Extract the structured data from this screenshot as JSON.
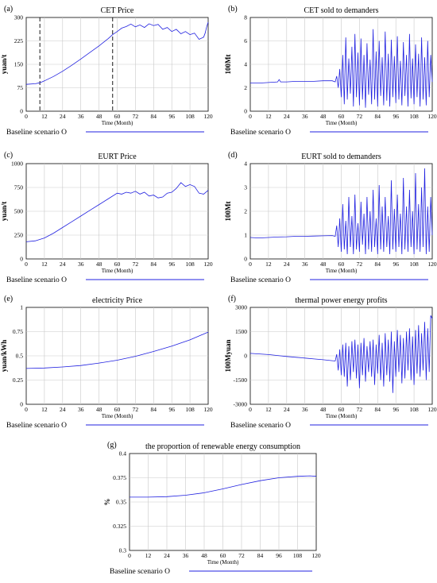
{
  "chart_data": [
    {
      "panel": "(a)",
      "type": "line",
      "title": "CET Price",
      "ylabel": "yuan/t",
      "xlabel": "Time (Month)",
      "xlim": [
        0,
        120
      ],
      "ylim": [
        0,
        300
      ],
      "xticks": [
        "0",
        "12",
        "24",
        "36",
        "48",
        "60",
        "72",
        "84",
        "96",
        "108",
        "120"
      ],
      "yticks": [
        "0",
        "75",
        "150",
        "225",
        "300"
      ],
      "grid": true,
      "markers_x": [
        9,
        57
      ],
      "legend": "Baseline scenario O",
      "series": [
        {
          "x": [
            0,
            6,
            9,
            12,
            18,
            24,
            30,
            36,
            42,
            48,
            54,
            57,
            60,
            63,
            66,
            69,
            72,
            75,
            78,
            81,
            84,
            87,
            90,
            93,
            96,
            99,
            102,
            105,
            108,
            111,
            114,
            117,
            118,
            119,
            120
          ],
          "y": [
            86,
            88,
            91,
            97,
            111,
            128,
            147,
            167,
            188,
            209,
            232,
            245,
            255,
            266,
            271,
            279,
            270,
            276,
            268,
            280,
            274,
            278,
            262,
            268,
            255,
            262,
            248,
            255,
            245,
            250,
            230,
            237,
            250,
            270,
            285
          ]
        }
      ]
    },
    {
      "panel": "(b)",
      "type": "line",
      "title": "CET sold to demanders",
      "ylabel": "100Mt",
      "xlabel": "Time (Month)",
      "xlim": [
        0,
        120
      ],
      "ylim": [
        0,
        8
      ],
      "xticks": [
        "0",
        "12",
        "24",
        "36",
        "48",
        "60",
        "72",
        "84",
        "96",
        "108",
        "120"
      ],
      "yticks": [
        "0",
        "2",
        "4",
        "6",
        "8"
      ],
      "grid": true,
      "legend": "Baseline scenario O",
      "series": [
        {
          "x": [
            0,
            6,
            12,
            18,
            19,
            20,
            24,
            30,
            36,
            42,
            48,
            54,
            56,
            57,
            58,
            59,
            60,
            61,
            62,
            63,
            64,
            65,
            66,
            67,
            68,
            69,
            70,
            71,
            72,
            73,
            74,
            75,
            76,
            77,
            78,
            79,
            80,
            81,
            82,
            83,
            84,
            85,
            86,
            87,
            88,
            89,
            90,
            91,
            92,
            93,
            94,
            95,
            96,
            97,
            98,
            99,
            100,
            101,
            102,
            103,
            104,
            105,
            106,
            107,
            108,
            109,
            110,
            111,
            112,
            113,
            114,
            115,
            116,
            117,
            118,
            119,
            120
          ],
          "y": [
            2.4,
            2.4,
            2.45,
            2.5,
            2.7,
            2.5,
            2.5,
            2.55,
            2.55,
            2.55,
            2.6,
            2.6,
            2.5,
            3.0,
            2.0,
            3.6,
            1.2,
            4.8,
            0.6,
            6.3,
            1.0,
            4.5,
            1.5,
            5.5,
            0.4,
            6.6,
            1.2,
            5.0,
            0.5,
            6.2,
            1.0,
            4.8,
            0.3,
            5.8,
            1.4,
            4.4,
            0.6,
            7.0,
            1.0,
            5.1,
            0.4,
            6.0,
            1.3,
            4.6,
            0.5,
            6.8,
            0.9,
            4.9,
            0.4,
            6.1,
            1.2,
            4.7,
            0.7,
            6.4,
            1.0,
            4.3,
            0.5,
            5.9,
            1.3,
            4.8,
            0.4,
            6.6,
            1.1,
            4.5,
            0.6,
            5.7,
            1.2,
            4.9,
            0.4,
            6.3,
            1.0,
            4.6,
            0.5,
            6.0,
            1.2,
            4.8,
            2.5
          ]
        }
      ]
    },
    {
      "panel": "(c)",
      "type": "line",
      "title": "EURT Price",
      "ylabel": "yuan/t",
      "xlabel": "Time (Month)",
      "xlim": [
        0,
        120
      ],
      "ylim": [
        0,
        1000
      ],
      "xticks": [
        "0",
        "12",
        "24",
        "36",
        "48",
        "60",
        "72",
        "84",
        "96",
        "108",
        "120"
      ],
      "yticks": [
        "0",
        "250",
        "500",
        "750",
        "1000"
      ],
      "grid": true,
      "legend": "Baseline scenario O",
      "series": [
        {
          "x": [
            0,
            6,
            12,
            18,
            24,
            30,
            36,
            42,
            48,
            54,
            60,
            63,
            66,
            69,
            72,
            75,
            78,
            81,
            84,
            87,
            90,
            93,
            96,
            99,
            102,
            105,
            108,
            111,
            114,
            117,
            120
          ],
          "y": [
            180,
            190,
            220,
            270,
            330,
            390,
            450,
            510,
            570,
            630,
            690,
            680,
            700,
            690,
            710,
            680,
            700,
            660,
            670,
            640,
            650,
            690,
            700,
            740,
            800,
            760,
            780,
            760,
            690,
            680,
            720
          ]
        }
      ]
    },
    {
      "panel": "(d)",
      "type": "line",
      "title": "EURT sold to demanders",
      "ylabel": "100Mt",
      "xlabel": "Time (Month)",
      "xlim": [
        0,
        120
      ],
      "ylim": [
        0,
        4
      ],
      "xticks": [
        "0",
        "12",
        "24",
        "36",
        "48",
        "60",
        "72",
        "84",
        "96",
        "108",
        "120"
      ],
      "yticks": [
        "0",
        "1",
        "2",
        "3",
        "4"
      ],
      "grid": true,
      "legend": "Baseline scenario O",
      "series": [
        {
          "x": [
            0,
            6,
            12,
            18,
            24,
            30,
            36,
            42,
            48,
            54,
            56,
            57,
            58,
            59,
            60,
            61,
            62,
            63,
            64,
            65,
            66,
            67,
            68,
            69,
            70,
            71,
            72,
            73,
            74,
            75,
            76,
            77,
            78,
            79,
            80,
            81,
            82,
            83,
            84,
            85,
            86,
            87,
            88,
            89,
            90,
            91,
            92,
            93,
            94,
            95,
            96,
            97,
            98,
            99,
            100,
            101,
            102,
            103,
            104,
            105,
            106,
            107,
            108,
            109,
            110,
            111,
            112,
            113,
            114,
            115,
            116,
            117,
            118,
            119,
            120
          ],
          "y": [
            0.9,
            0.88,
            0.9,
            0.92,
            0.93,
            0.95,
            0.95,
            0.96,
            0.97,
            0.98,
            0.95,
            1.4,
            0.5,
            1.7,
            0.3,
            2.3,
            0.4,
            1.6,
            0.2,
            2.6,
            0.5,
            1.8,
            0.2,
            2.7,
            0.4,
            1.5,
            0.3,
            2.4,
            0.6,
            1.9,
            0.2,
            2.6,
            0.4,
            2.0,
            0.3,
            2.9,
            0.5,
            1.7,
            0.2,
            3.1,
            0.4,
            2.2,
            0.3,
            2.6,
            0.5,
            1.8,
            0.2,
            3.3,
            0.4,
            2.1,
            0.3,
            2.7,
            0.5,
            1.9,
            0.2,
            3.4,
            0.4,
            2.2,
            0.3,
            2.9,
            0.5,
            2.0,
            0.2,
            3.6,
            0.4,
            2.3,
            0.3,
            3.0,
            0.5,
            3.8,
            0.2,
            2.2,
            0.3,
            2.6,
            1.0
          ]
        }
      ]
    },
    {
      "panel": "(e)",
      "type": "line",
      "title": "electricity Price",
      "ylabel": "yuan/kWh",
      "xlabel": "Time (Month)",
      "xlim": [
        0,
        120
      ],
      "ylim": [
        0,
        1
      ],
      "xticks": [
        "0",
        "12",
        "24",
        "36",
        "48",
        "60",
        "72",
        "84",
        "96",
        "108",
        "120"
      ],
      "yticks": [
        "0",
        "0.25",
        "0.5",
        "0.75",
        "1"
      ],
      "grid": true,
      "legend": "Baseline scenario O",
      "series": [
        {
          "x": [
            0,
            12,
            24,
            36,
            48,
            60,
            72,
            84,
            96,
            108,
            120
          ],
          "y": [
            0.37,
            0.375,
            0.385,
            0.4,
            0.425,
            0.455,
            0.495,
            0.545,
            0.6,
            0.665,
            0.745
          ]
        }
      ]
    },
    {
      "panel": "(f)",
      "type": "line",
      "title": "thermal power energy profits",
      "ylabel": "100Myuan",
      "xlabel": "Time (Month)",
      "xlim": [
        0,
        120
      ],
      "ylim": [
        -3000,
        3000
      ],
      "xticks": [
        "0",
        "12",
        "24",
        "36",
        "48",
        "60",
        "72",
        "84",
        "96",
        "108",
        "120"
      ],
      "yticks": [
        "-3000",
        "-1500",
        "0",
        "1500",
        "3000"
      ],
      "grid": true,
      "legend": "Baseline scenario O",
      "series": [
        {
          "x": [
            0,
            6,
            12,
            18,
            24,
            30,
            36,
            42,
            48,
            54,
            56,
            57,
            58,
            59,
            60,
            61,
            62,
            63,
            64,
            65,
            66,
            67,
            68,
            69,
            70,
            71,
            72,
            73,
            74,
            75,
            76,
            77,
            78,
            79,
            80,
            81,
            82,
            83,
            84,
            85,
            86,
            87,
            88,
            89,
            90,
            91,
            92,
            93,
            94,
            95,
            96,
            97,
            98,
            99,
            100,
            101,
            102,
            103,
            104,
            105,
            106,
            107,
            108,
            109,
            110,
            111,
            112,
            113,
            114,
            115,
            116,
            117,
            118,
            119,
            120
          ],
          "y": [
            150,
            120,
            80,
            20,
            -40,
            -90,
            -140,
            -190,
            -240,
            -300,
            -320,
            100,
            -900,
            400,
            -1200,
            700,
            -1300,
            800,
            -1900,
            600,
            -1500,
            900,
            -1000,
            1000,
            -1400,
            700,
            -2000,
            800,
            -1200,
            1100,
            -1600,
            600,
            -1000,
            900,
            -1300,
            1000,
            -1800,
            700,
            -1100,
            1300,
            -1500,
            800,
            -1900,
            1400,
            -1200,
            1000,
            -1600,
            1500,
            -2300,
            900,
            -1300,
            1600,
            -1000,
            1300,
            -1700,
            1100,
            -1400,
            1500,
            -900,
            1700,
            -1500,
            1200,
            -1800,
            1600,
            -1100,
            1900,
            -1300,
            1400,
            -900,
            2100,
            -1500,
            1700,
            -1000,
            2500,
            2300
          ]
        }
      ]
    },
    {
      "panel": "(g)",
      "type": "line",
      "title": "the proportion of renewable energy consumption",
      "ylabel": "%",
      "xlabel": "Time (Month)",
      "xlim": [
        0,
        120
      ],
      "ylim": [
        0.3,
        0.4
      ],
      "xticks": [
        "0",
        "12",
        "24",
        "36",
        "48",
        "60",
        "72",
        "84",
        "96",
        "108",
        "120"
      ],
      "yticks": [
        "0.3",
        "0.325",
        "0.35",
        "0.375",
        "0.4"
      ],
      "grid": true,
      "legend": "Baseline scenario O",
      "series": [
        {
          "x": [
            0,
            12,
            24,
            36,
            48,
            60,
            72,
            84,
            96,
            108,
            116,
            120
          ],
          "y": [
            0.355,
            0.355,
            0.3555,
            0.357,
            0.3595,
            0.3635,
            0.368,
            0.372,
            0.375,
            0.3765,
            0.377,
            0.3765
          ]
        }
      ]
    }
  ]
}
